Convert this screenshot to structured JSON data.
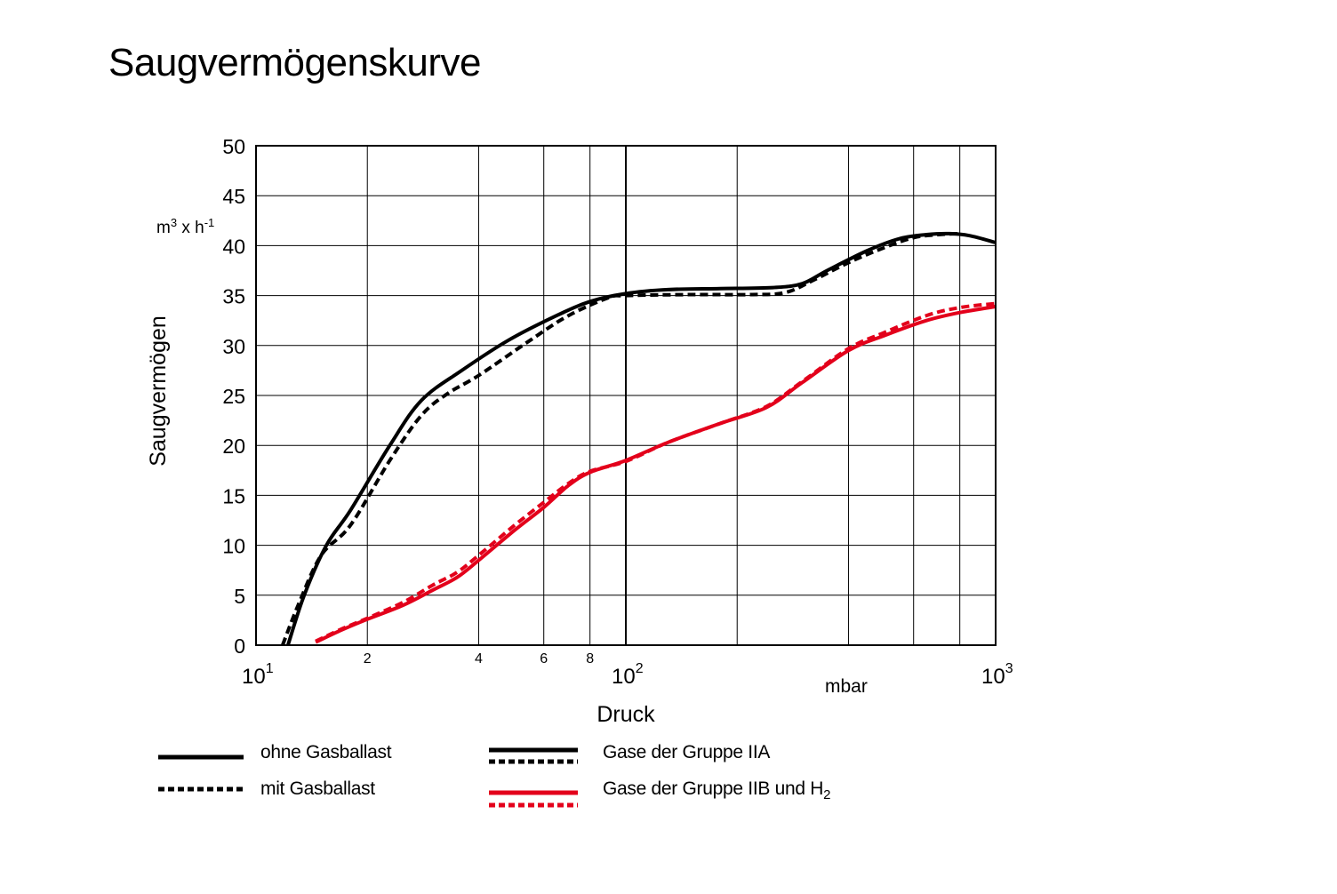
{
  "title": "Saugvermögenskurve",
  "chart_data": {
    "type": "line",
    "title": "Saugvermögenskurve",
    "xlabel": "Druck",
    "x_unit": "mbar",
    "ylabel": "Saugvermögen",
    "y_unit_base": "m",
    "y_unit_sup1": "3",
    "y_unit_mid": " x h",
    "y_unit_sup2": "-1",
    "x_scale": "log",
    "xlim": [
      10,
      1000
    ],
    "ylim": [
      0,
      50
    ],
    "grid": true,
    "y_ticks": [
      0,
      5,
      10,
      15,
      20,
      25,
      30,
      35,
      40,
      45,
      50
    ],
    "y_tick_labels": [
      "0",
      "5",
      "10",
      "15",
      "20",
      "25",
      "30",
      "35",
      "40",
      "45",
      "50"
    ],
    "x_major_ticks": [
      {
        "value": 10,
        "base": "10",
        "exp": "1"
      },
      {
        "value": 100,
        "base": "10",
        "exp": "2"
      },
      {
        "value": 1000,
        "base": "10",
        "exp": "3"
      }
    ],
    "x_minor_ticks": [
      {
        "value": 20,
        "label": "2"
      },
      {
        "value": 40,
        "label": "4"
      },
      {
        "value": 60,
        "label": "6"
      },
      {
        "value": 80,
        "label": "8"
      }
    ],
    "x_grid_values": [
      20,
      40,
      60,
      80,
      100,
      200,
      400,
      600,
      800
    ],
    "series": [
      {
        "name": "ohne Gasballast",
        "group": "Gase der Gruppe IIA",
        "color": "#000000",
        "style": "solid",
        "points": [
          [
            12.2,
            0
          ],
          [
            13.5,
            5
          ],
          [
            15.5,
            10
          ],
          [
            18.0,
            13.5
          ],
          [
            23,
            20
          ],
          [
            28.0,
            24.5
          ],
          [
            36,
            27.5
          ],
          [
            48,
            30.5
          ],
          [
            65,
            33
          ],
          [
            80,
            34.4
          ],
          [
            100,
            35.2
          ],
          [
            130,
            35.6
          ],
          [
            180,
            35.7
          ],
          [
            250,
            35.8
          ],
          [
            300,
            36.2
          ],
          [
            350,
            37.5
          ],
          [
            450,
            39.5
          ],
          [
            550,
            40.7
          ],
          [
            650,
            41.1
          ],
          [
            750,
            41.2
          ],
          [
            850,
            41.0
          ],
          [
            1000,
            40.3
          ]
        ]
      },
      {
        "name": "mit Gasballast",
        "group": "Gase der Gruppe IIA",
        "color": "#000000",
        "style": "dashed",
        "points": [
          [
            11.8,
            0
          ],
          [
            13.0,
            4
          ],
          [
            15.0,
            9
          ],
          [
            18.0,
            12
          ],
          [
            23,
            18.5
          ],
          [
            28.0,
            23
          ],
          [
            33,
            25.2
          ],
          [
            40,
            27
          ],
          [
            55,
            30.5
          ],
          [
            70,
            33
          ],
          [
            90,
            34.8
          ],
          [
            100,
            35.0
          ],
          [
            150,
            35.1
          ],
          [
            220,
            35.1
          ],
          [
            270,
            35.3
          ],
          [
            320,
            36.5
          ],
          [
            400,
            38.3
          ],
          [
            500,
            39.8
          ],
          [
            600,
            40.8
          ],
          [
            700,
            41.1
          ],
          [
            800,
            41.2
          ]
        ]
      },
      {
        "name": "ohne Gasballast",
        "group": "Gase der Gruppe IIB und H",
        "color": "#e3001b",
        "style": "solid",
        "points": [
          [
            14.5,
            0.3
          ],
          [
            17,
            1.5
          ],
          [
            20,
            2.6
          ],
          [
            25,
            4.0
          ],
          [
            30,
            5.5
          ],
          [
            35,
            6.8
          ],
          [
            40,
            8.5
          ],
          [
            50,
            11.5
          ],
          [
            60,
            13.8
          ],
          [
            70,
            16
          ],
          [
            80,
            17.3
          ],
          [
            100,
            18.5
          ],
          [
            130,
            20.3
          ],
          [
            180,
            22.2
          ],
          [
            240,
            23.8
          ],
          [
            300,
            26.3
          ],
          [
            400,
            29.5
          ],
          [
            500,
            31
          ],
          [
            650,
            32.5
          ],
          [
            800,
            33.3
          ],
          [
            1000,
            33.9
          ]
        ]
      },
      {
        "name": "mit Gasballast",
        "group": "Gase der Gruppe IIB und H",
        "color": "#e3001b",
        "style": "dashed",
        "points": [
          [
            14.5,
            0.4
          ],
          [
            17,
            1.6
          ],
          [
            20,
            2.7
          ],
          [
            25,
            4.3
          ],
          [
            30,
            6.0
          ],
          [
            35,
            7.3
          ],
          [
            40,
            9
          ],
          [
            50,
            12
          ],
          [
            60,
            14.3
          ],
          [
            70,
            16.2
          ],
          [
            80,
            17.4
          ],
          [
            100,
            18.4
          ],
          [
            130,
            20.3
          ],
          [
            180,
            22.2
          ],
          [
            240,
            23.9
          ],
          [
            300,
            26.4
          ],
          [
            400,
            29.7
          ],
          [
            500,
            31.3
          ],
          [
            650,
            33
          ],
          [
            800,
            33.8
          ],
          [
            1000,
            34.2
          ]
        ]
      }
    ]
  },
  "legend": {
    "items": [
      {
        "label": "ohne Gasballast",
        "style": "solid"
      },
      {
        "label": "mit Gasballast",
        "style": "dashed"
      }
    ],
    "groups": [
      {
        "label": "Gase der Gruppe IIA",
        "color": "#000000"
      },
      {
        "label": "Gase der Gruppe IIB und H",
        "sub": "2",
        "color": "#e3001b"
      }
    ]
  }
}
